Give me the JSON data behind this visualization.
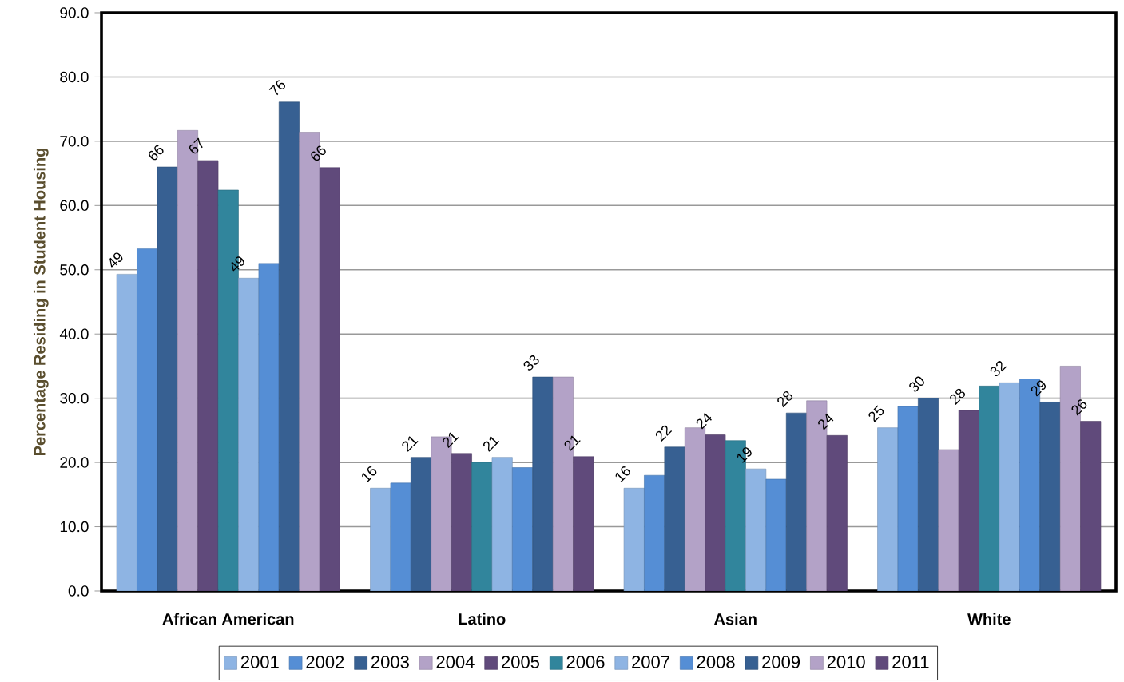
{
  "chart_data": {
    "type": "bar",
    "ylabel": "Percentage Residing in Student Housing",
    "categories": [
      "African American",
      "Latino",
      "Asian",
      "White"
    ],
    "ylim": [
      0,
      90
    ],
    "yticks": [
      {
        "value": 0,
        "label": "0.0"
      },
      {
        "value": 10,
        "label": "10.0"
      },
      {
        "value": 20,
        "label": "20.0"
      },
      {
        "value": 30,
        "label": "30.0"
      },
      {
        "value": 40,
        "label": "40.0"
      },
      {
        "value": 50,
        "label": "50.0"
      },
      {
        "value": 60,
        "label": "60.0"
      },
      {
        "value": 70,
        "label": "70.0"
      },
      {
        "value": 80,
        "label": "80.0"
      },
      {
        "value": 90,
        "label": "90.0"
      }
    ],
    "grid": "y",
    "legend": "bottom",
    "series": [
      {
        "name": "2001",
        "color": "#8eb4e3",
        "values": [
          49.3,
          16.0,
          16.0,
          25.4
        ],
        "value_labels": [
          "49",
          "16",
          "16",
          "25"
        ]
      },
      {
        "name": "2002",
        "color": "#558ed5",
        "values": [
          53.3,
          16.8,
          18.0,
          28.7
        ]
      },
      {
        "name": "2003",
        "color": "#376092",
        "values": [
          66.0,
          20.8,
          22.4,
          30.0
        ],
        "value_labels": [
          "66",
          "21",
          "22",
          "30"
        ]
      },
      {
        "name": "2004",
        "color": "#b3a2c7",
        "values": [
          71.7,
          24.0,
          25.4,
          22.0
        ]
      },
      {
        "name": "2005",
        "color": "#604a7b",
        "values": [
          67.0,
          21.4,
          24.3,
          28.1
        ],
        "value_labels": [
          "67",
          "21",
          "24",
          "28"
        ]
      },
      {
        "name": "2006",
        "color": "#31859c",
        "values": [
          62.4,
          20.0,
          23.4,
          31.9
        ]
      },
      {
        "name": "2007",
        "color": "#8eb4e3",
        "values": [
          48.7,
          20.8,
          19.0,
          32.4
        ],
        "value_labels": [
          "49",
          "21",
          "19",
          "32"
        ]
      },
      {
        "name": "2008",
        "color": "#558ed5",
        "values": [
          51.0,
          19.2,
          17.4,
          33.0
        ]
      },
      {
        "name": "2009",
        "color": "#376092",
        "values": [
          76.1,
          33.3,
          27.7,
          29.4
        ],
        "value_labels": [
          "76",
          "33",
          "28",
          "29"
        ]
      },
      {
        "name": "2010",
        "color": "#b3a2c7",
        "values": [
          71.4,
          33.3,
          29.6,
          35.0
        ]
      },
      {
        "name": "2011",
        "color": "#604a7b",
        "values": [
          65.9,
          20.9,
          24.2,
          26.4
        ],
        "value_labels": [
          "66",
          "21",
          "24",
          "26"
        ]
      }
    ]
  }
}
